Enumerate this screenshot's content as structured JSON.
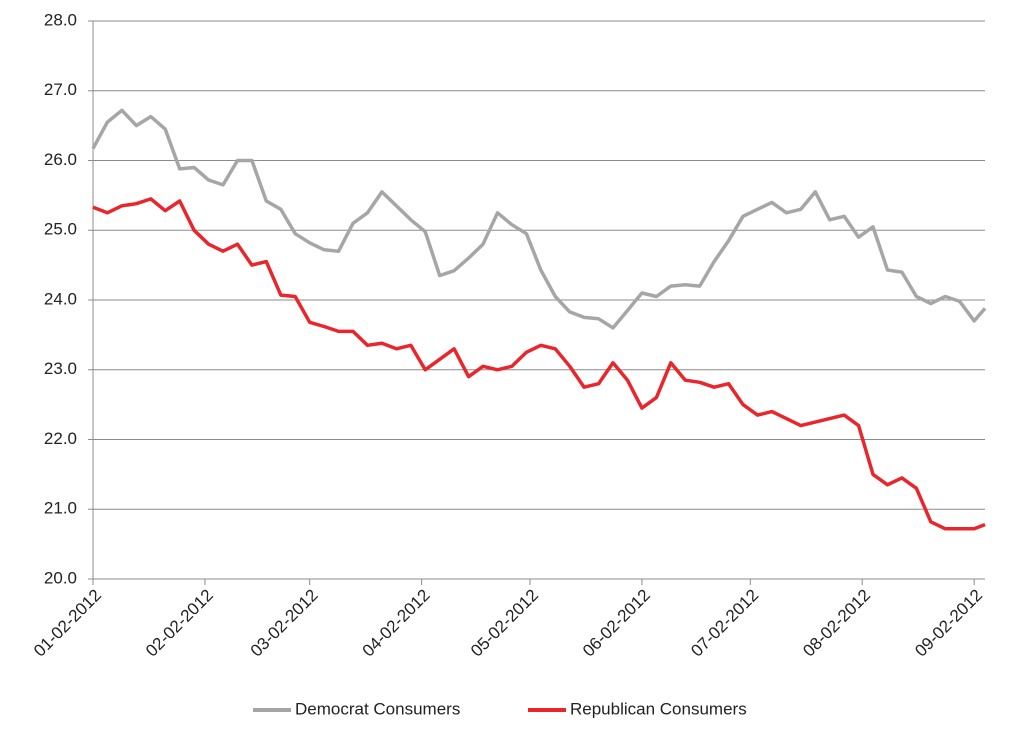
{
  "chart_data": {
    "type": "line",
    "x": [
      "2012-01-02",
      "2012-01-06",
      "2012-01-10",
      "2012-01-14",
      "2012-01-18",
      "2012-01-22",
      "2012-01-26",
      "2012-01-30",
      "2012-02-03",
      "2012-02-07",
      "2012-02-11",
      "2012-02-15",
      "2012-02-19",
      "2012-02-23",
      "2012-02-27",
      "2012-03-02",
      "2012-03-06",
      "2012-03-10",
      "2012-03-14",
      "2012-03-18",
      "2012-03-22",
      "2012-03-26",
      "2012-03-30",
      "2012-04-03",
      "2012-04-07",
      "2012-04-11",
      "2012-04-15",
      "2012-04-19",
      "2012-04-23",
      "2012-04-27",
      "2012-05-01",
      "2012-05-05",
      "2012-05-09",
      "2012-05-13",
      "2012-05-17",
      "2012-05-21",
      "2012-05-25",
      "2012-05-29",
      "2012-06-02",
      "2012-06-06",
      "2012-06-10",
      "2012-06-14",
      "2012-06-18",
      "2012-06-22",
      "2012-06-26",
      "2012-06-30",
      "2012-07-04",
      "2012-07-08",
      "2012-07-12",
      "2012-07-16",
      "2012-07-20",
      "2012-07-24",
      "2012-07-28",
      "2012-08-01",
      "2012-08-05",
      "2012-08-09",
      "2012-08-13",
      "2012-08-17",
      "2012-08-21",
      "2012-08-25",
      "2012-08-29",
      "2012-09-02",
      "2012-09-05"
    ],
    "series": [
      {
        "name": "Democrat Consumers",
        "color": "#a6a6a6",
        "values": [
          26.17,
          26.55,
          26.72,
          26.5,
          26.63,
          26.45,
          25.88,
          25.9,
          25.72,
          25.65,
          26.0,
          26.0,
          25.42,
          25.3,
          24.95,
          24.82,
          24.72,
          24.7,
          25.1,
          25.25,
          25.55,
          25.35,
          25.15,
          24.98,
          24.35,
          24.42,
          24.6,
          24.8,
          25.25,
          25.08,
          24.95,
          24.43,
          24.05,
          23.83,
          23.75,
          23.73,
          23.6,
          23.85,
          24.1,
          24.05,
          24.2,
          24.22,
          24.2,
          24.55,
          24.85,
          25.2,
          25.3,
          25.4,
          25.25,
          25.3,
          25.55,
          25.15,
          25.2,
          24.9,
          25.05,
          24.43,
          24.4,
          24.05,
          23.95,
          24.05,
          23.98,
          23.7,
          23.88
        ]
      },
      {
        "name": "Republican Consumers",
        "color": "#e8262b",
        "values": [
          25.33,
          25.25,
          25.35,
          25.38,
          25.45,
          25.28,
          25.42,
          25.0,
          24.8,
          24.7,
          24.8,
          24.5,
          24.55,
          24.07,
          24.05,
          23.68,
          23.62,
          23.55,
          23.55,
          23.35,
          23.38,
          23.3,
          23.35,
          23.0,
          23.15,
          23.3,
          22.9,
          23.05,
          23.0,
          23.05,
          23.25,
          23.35,
          23.3,
          23.05,
          22.75,
          22.8,
          23.1,
          22.85,
          22.45,
          22.6,
          23.1,
          22.85,
          22.82,
          22.75,
          22.8,
          22.5,
          22.35,
          22.4,
          22.3,
          22.2,
          22.25,
          22.3,
          22.35,
          22.2,
          21.5,
          21.35,
          21.45,
          21.3,
          20.82,
          20.72,
          20.72,
          20.72,
          20.78
        ]
      }
    ],
    "xlim": [
      "2012-01-02",
      "2012-09-05"
    ],
    "xticks": [
      {
        "value": "2012-01-02",
        "label": "01-02-2012"
      },
      {
        "value": "2012-02-02",
        "label": "02-02-2012"
      },
      {
        "value": "2012-03-02",
        "label": "03-02-2012"
      },
      {
        "value": "2012-04-02",
        "label": "04-02-2012"
      },
      {
        "value": "2012-05-02",
        "label": "05-02-2012"
      },
      {
        "value": "2012-06-02",
        "label": "06-02-2012"
      },
      {
        "value": "2012-07-02",
        "label": "07-02-2012"
      },
      {
        "value": "2012-08-02",
        "label": "08-02-2012"
      },
      {
        "value": "2012-09-02",
        "label": "09-02-2012"
      }
    ],
    "ylim": [
      20,
      28
    ],
    "yticks": [
      {
        "value": 20,
        "label": "20.0"
      },
      {
        "value": 21,
        "label": "21.0"
      },
      {
        "value": 22,
        "label": "22.0"
      },
      {
        "value": 23,
        "label": "23.0"
      },
      {
        "value": 24,
        "label": "24.0"
      },
      {
        "value": 25,
        "label": "25.0"
      },
      {
        "value": 26,
        "label": "26.0"
      },
      {
        "value": 27,
        "label": "27.0"
      },
      {
        "value": 28,
        "label": "28.0"
      }
    ],
    "grid": true,
    "legend": "bottom"
  }
}
